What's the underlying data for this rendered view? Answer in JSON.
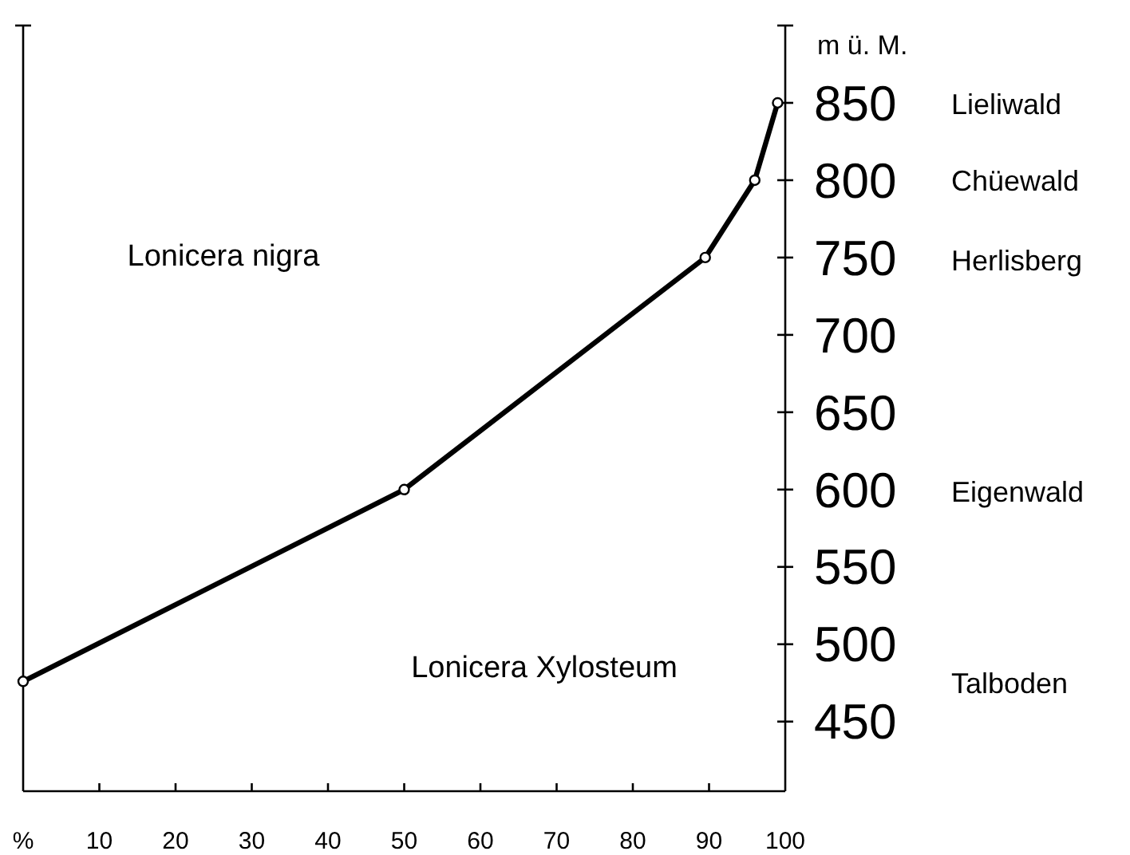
{
  "chart_data": {
    "type": "line",
    "ylabel": "m ü. M.",
    "xlim": [
      0,
      100
    ],
    "ylim": [
      405,
      900
    ],
    "xticks": [
      {
        "value": 0,
        "label": "%"
      },
      10,
      20,
      30,
      40,
      50,
      60,
      70,
      80,
      90,
      100
    ],
    "yticks": [
      450,
      500,
      550,
      600,
      650,
      700,
      750,
      800,
      850,
      {
        "value": 900,
        "label": null
      }
    ],
    "marker": "circle",
    "series": [
      {
        "color": "#000000",
        "x": [
          0,
          50,
          89.5,
          96,
          99
        ],
        "values": [
          476,
          600,
          750,
          800,
          850
        ]
      }
    ],
    "annotations": [
      "Lieliwald",
      "Chüewald",
      "Herlisberg",
      "Eigenwald",
      "Talboden",
      "Lonicera nigra",
      "Lonicera Xylosteum"
    ]
  }
}
